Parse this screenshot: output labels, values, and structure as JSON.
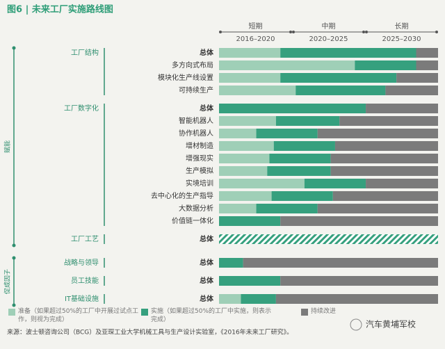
{
  "chart_data": {
    "type": "bar",
    "orientation": "horizontal",
    "stacked": true,
    "title": "图6 | 未来工厂实施路线图",
    "xlim": [
      0,
      100
    ],
    "periods": [
      {
        "name": "短期",
        "range": "2016–2020"
      },
      {
        "name": "中期",
        "range": "2020–2025"
      },
      {
        "name": "长期",
        "range": "2025–2030"
      }
    ],
    "series": [
      {
        "name": "准备（如果超过50%的工厂中开展过试点工作，则视为完成）",
        "color": "#9fcfb7"
      },
      {
        "name": "实施（如果超过50%的工厂中实施，则表示完成）",
        "color": "#36a07e"
      },
      {
        "name": "持续改进",
        "color": "#7b7b7b"
      }
    ],
    "sections": [
      {
        "label": "赋能",
        "groups": [
          {
            "label": "工厂结构",
            "rows": [
              {
                "label": "总体",
                "values": [
                  28,
                  62,
                  10
                ]
              },
              {
                "label": "多方向式布局",
                "values": [
                  62,
                  28,
                  10
                ]
              },
              {
                "label": "模块化生产线设置",
                "values": [
                  28,
                  53,
                  19
                ]
              },
              {
                "label": "可持续生产",
                "values": [
                  35,
                  41,
                  24
                ]
              }
            ]
          },
          {
            "label": "工厂数字化",
            "rows": [
              {
                "label": "总体",
                "values": [
                  null,
                  67,
                  33
                ]
              },
              {
                "label": "智能机器人",
                "values": [
                  26,
                  29,
                  45
                ]
              },
              {
                "label": "协作机器人",
                "values": [
                  17,
                  28,
                  55
                ]
              },
              {
                "label": "增材制造",
                "values": [
                  25,
                  28,
                  47
                ]
              },
              {
                "label": "增强现实",
                "values": [
                  23,
                  28,
                  49
                ]
              },
              {
                "label": "生产模拟",
                "values": [
                  22,
                  29,
                  49
                ]
              },
              {
                "label": "实境培训",
                "values": [
                  39,
                  28,
                  33
                ]
              },
              {
                "label": "去中心化的生产指导",
                "values": [
                  24,
                  28,
                  48
                ]
              },
              {
                "label": "大数据分析",
                "values": [
                  17,
                  28,
                  55
                ]
              },
              {
                "label": "价值链一体化",
                "values": [
                  null,
                  28,
                  72
                ]
              }
            ]
          },
          {
            "label": "工厂工艺",
            "rows": [
              {
                "label": "总体",
                "values": [
                  null,
                  100,
                  null
                ],
                "hatched": true
              }
            ]
          }
        ]
      },
      {
        "label": "促成因子",
        "groups": [
          {
            "label": "战略与领导",
            "rows": [
              {
                "label": "总体",
                "values": [
                  null,
                  11,
                  89
                ]
              }
            ]
          },
          {
            "label": "员工技能",
            "rows": [
              {
                "label": "总体",
                "values": [
                  null,
                  28,
                  72
                ]
              }
            ]
          },
          {
            "label": "IT基础设施",
            "rows": [
              {
                "label": "总体",
                "values": [
                  10,
                  16,
                  74
                ]
              }
            ]
          }
        ]
      }
    ],
    "source": "来源：波士顿咨询公司（BCG）及亚琛工业大学机械工具与生产设计实验室，《2016年未来工厂研究》。",
    "watermark": "汽车黄埔军校"
  }
}
